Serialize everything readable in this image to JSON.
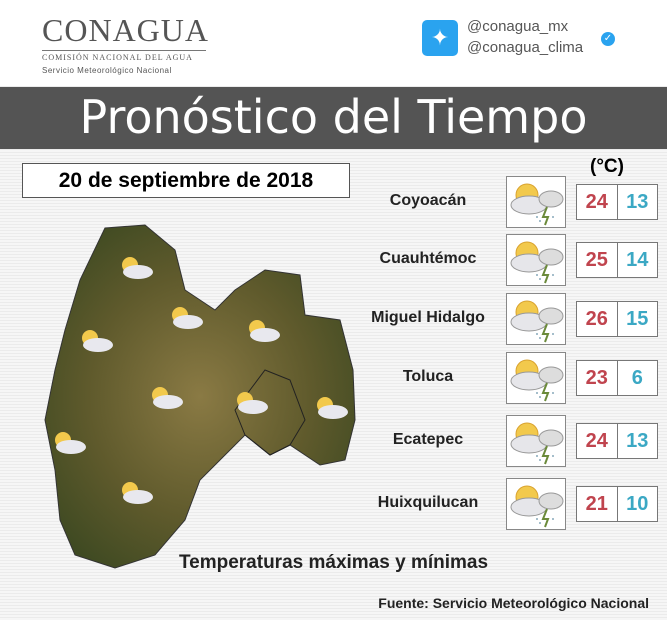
{
  "header": {
    "logo_name": "CONAGUA",
    "logo_subtitle": "COMISIÓN NACIONAL DEL AGUA",
    "logo_service": "Servicio Meteorológico Nacional",
    "twitter_handles": [
      "@conagua_mx",
      "@conagua_clima"
    ],
    "twitter_icon": "twitter-bird-icon",
    "verified_icon": "verified-badge-icon"
  },
  "title": "Pronóstico del Tiempo",
  "date": "20 de septiembre de 2018",
  "unit": "(°C)",
  "colors": {
    "max": "#c0444e",
    "min": "#3ba8c4",
    "title_bar": "#545454",
    "twitter": "#2aa3ef"
  },
  "forecast": [
    {
      "city": "Coyoacán",
      "icon": "partly-cloudy-storm-icon",
      "max": "24",
      "min": "13"
    },
    {
      "city": "Cuauhtémoc",
      "icon": "partly-cloudy-storm-icon",
      "max": "25",
      "min": "14"
    },
    {
      "city": "Miguel Hidalgo",
      "icon": "partly-cloudy-storm-icon",
      "max": "26",
      "min": "15"
    },
    {
      "city": "Toluca",
      "icon": "cloudy-storm-icon",
      "max": "23",
      "min": "6"
    },
    {
      "city": "Ecatepec",
      "icon": "partly-cloudy-storm-icon",
      "max": "24",
      "min": "13"
    },
    {
      "city": "Huixquilucan",
      "icon": "cloudy-storm-icon",
      "max": "21",
      "min": "10"
    }
  ],
  "footer": "Temperaturas máximas y mínimas",
  "source": "Fuente: Servicio Meteorológico Nacional"
}
